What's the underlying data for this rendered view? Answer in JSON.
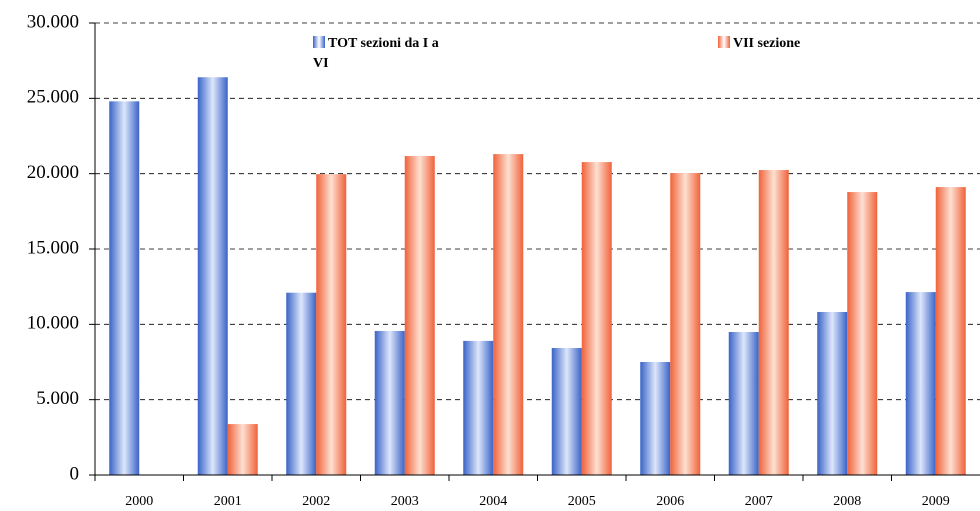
{
  "chart_data": {
    "type": "bar",
    "categories": [
      "2000",
      "2001",
      "2002",
      "2003",
      "2004",
      "2005",
      "2006",
      "2007",
      "2008",
      "2009"
    ],
    "series": [
      {
        "name": "TOT sezioni da I a VI",
        "color": "#3a63c8",
        "values": [
          24800,
          26400,
          12100,
          9560,
          8900,
          8430,
          7500,
          9490,
          10820,
          12140
        ]
      },
      {
        "name": "VII sezione",
        "color": "#f0623a",
        "values": [
          null,
          3380,
          19970,
          21170,
          21300,
          20770,
          20040,
          20240,
          18780,
          19110
        ]
      }
    ],
    "ylim": [
      0,
      30000
    ],
    "yticks": [
      0,
      {
        "value": 5000,
        "label": "5.000"
      },
      {
        "value": 10000,
        "label": "10.000"
      },
      {
        "value": 15000,
        "label": "15.000"
      },
      {
        "value": 20000,
        "label": "20.000"
      },
      {
        "value": 25000,
        "label": "25.000"
      },
      {
        "value": 30000,
        "label": "30.000"
      }
    ],
    "grid": true
  }
}
